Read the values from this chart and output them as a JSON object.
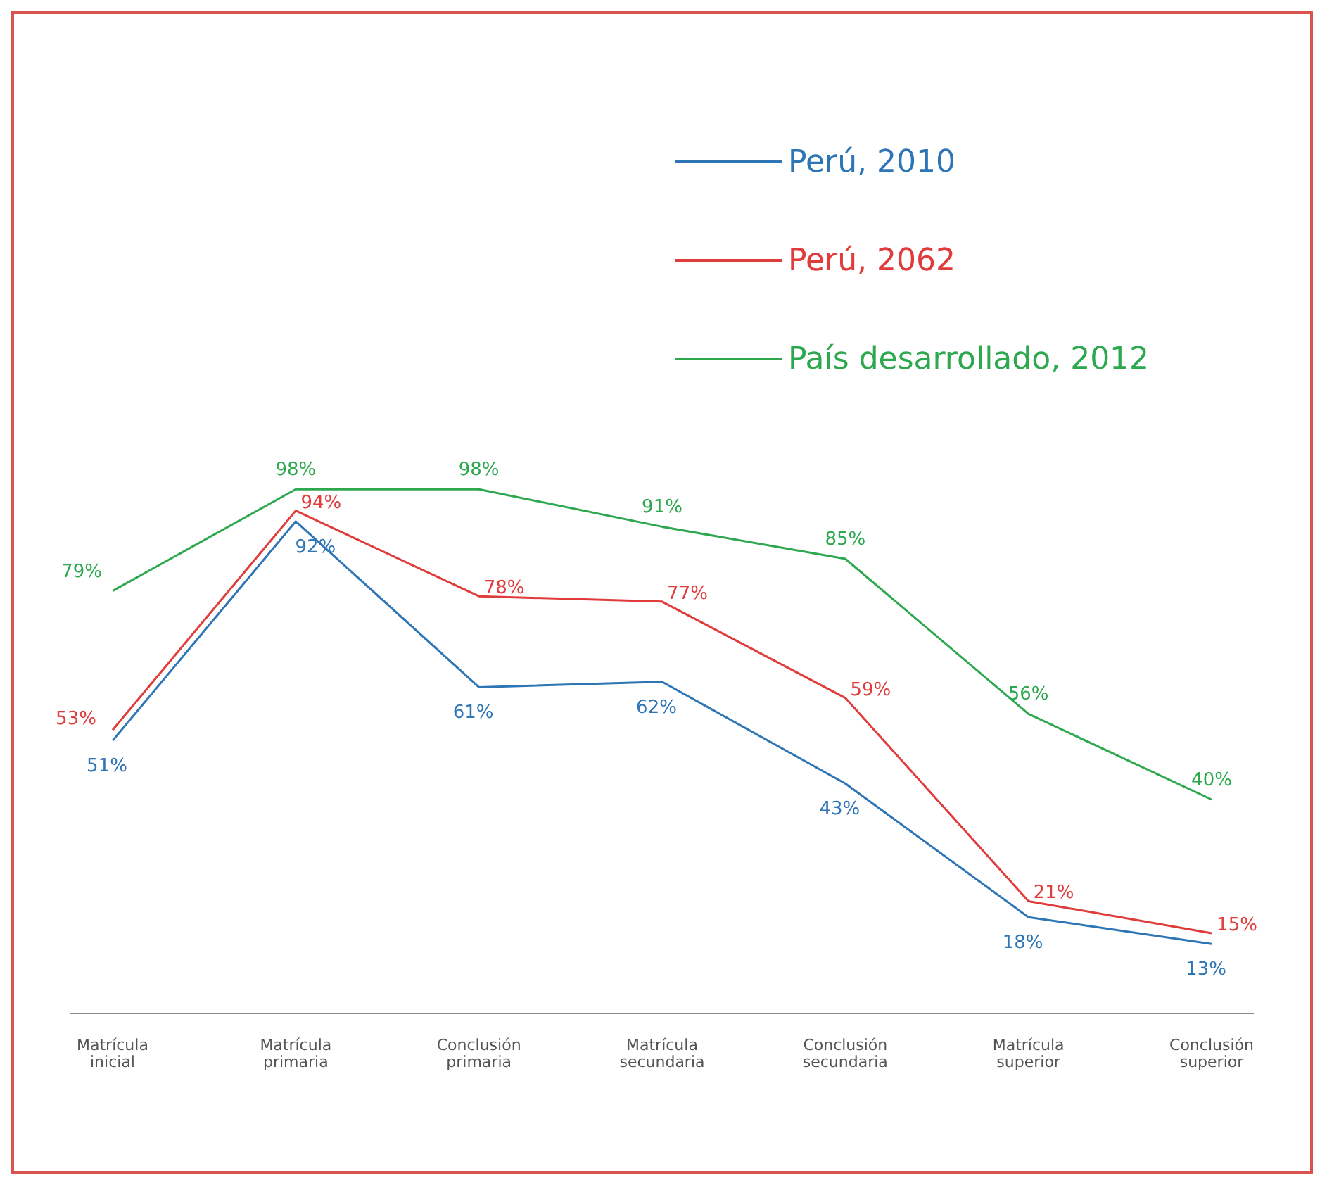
{
  "chart_data": {
    "type": "line",
    "categories": [
      "Matrícula inicial",
      "Matrícula primaria",
      "Conclusión primaria",
      "Matrícula secundaria",
      "Conclusión secundaria",
      "Matrícula superior",
      "Conclusión superior"
    ],
    "series": [
      {
        "name": "Perú, 2010",
        "color": "#2e75b6",
        "values": [
          51,
          92,
          61,
          62,
          43,
          18,
          13
        ],
        "value_labels": [
          "51%",
          "92%",
          "61%",
          "62%",
          "43%",
          "18%",
          "13%"
        ]
      },
      {
        "name": "Perú, 2062",
        "color": "#e03c3c",
        "values": [
          53,
          94,
          78,
          77,
          59,
          21,
          15
        ],
        "value_labels": [
          "53%",
          "94%",
          "78%",
          "77%",
          "59%",
          "21%",
          "15%"
        ]
      },
      {
        "name": "País desarrollado, 2012",
        "color": "#2ea84f",
        "values": [
          79,
          98,
          98,
          91,
          85,
          56,
          40
        ],
        "value_labels": [
          "79%",
          "98%",
          "98%",
          "91%",
          "85%",
          "56%",
          "40%"
        ]
      }
    ],
    "legend": "top right",
    "marker": "none",
    "line_style": "solid"
  }
}
